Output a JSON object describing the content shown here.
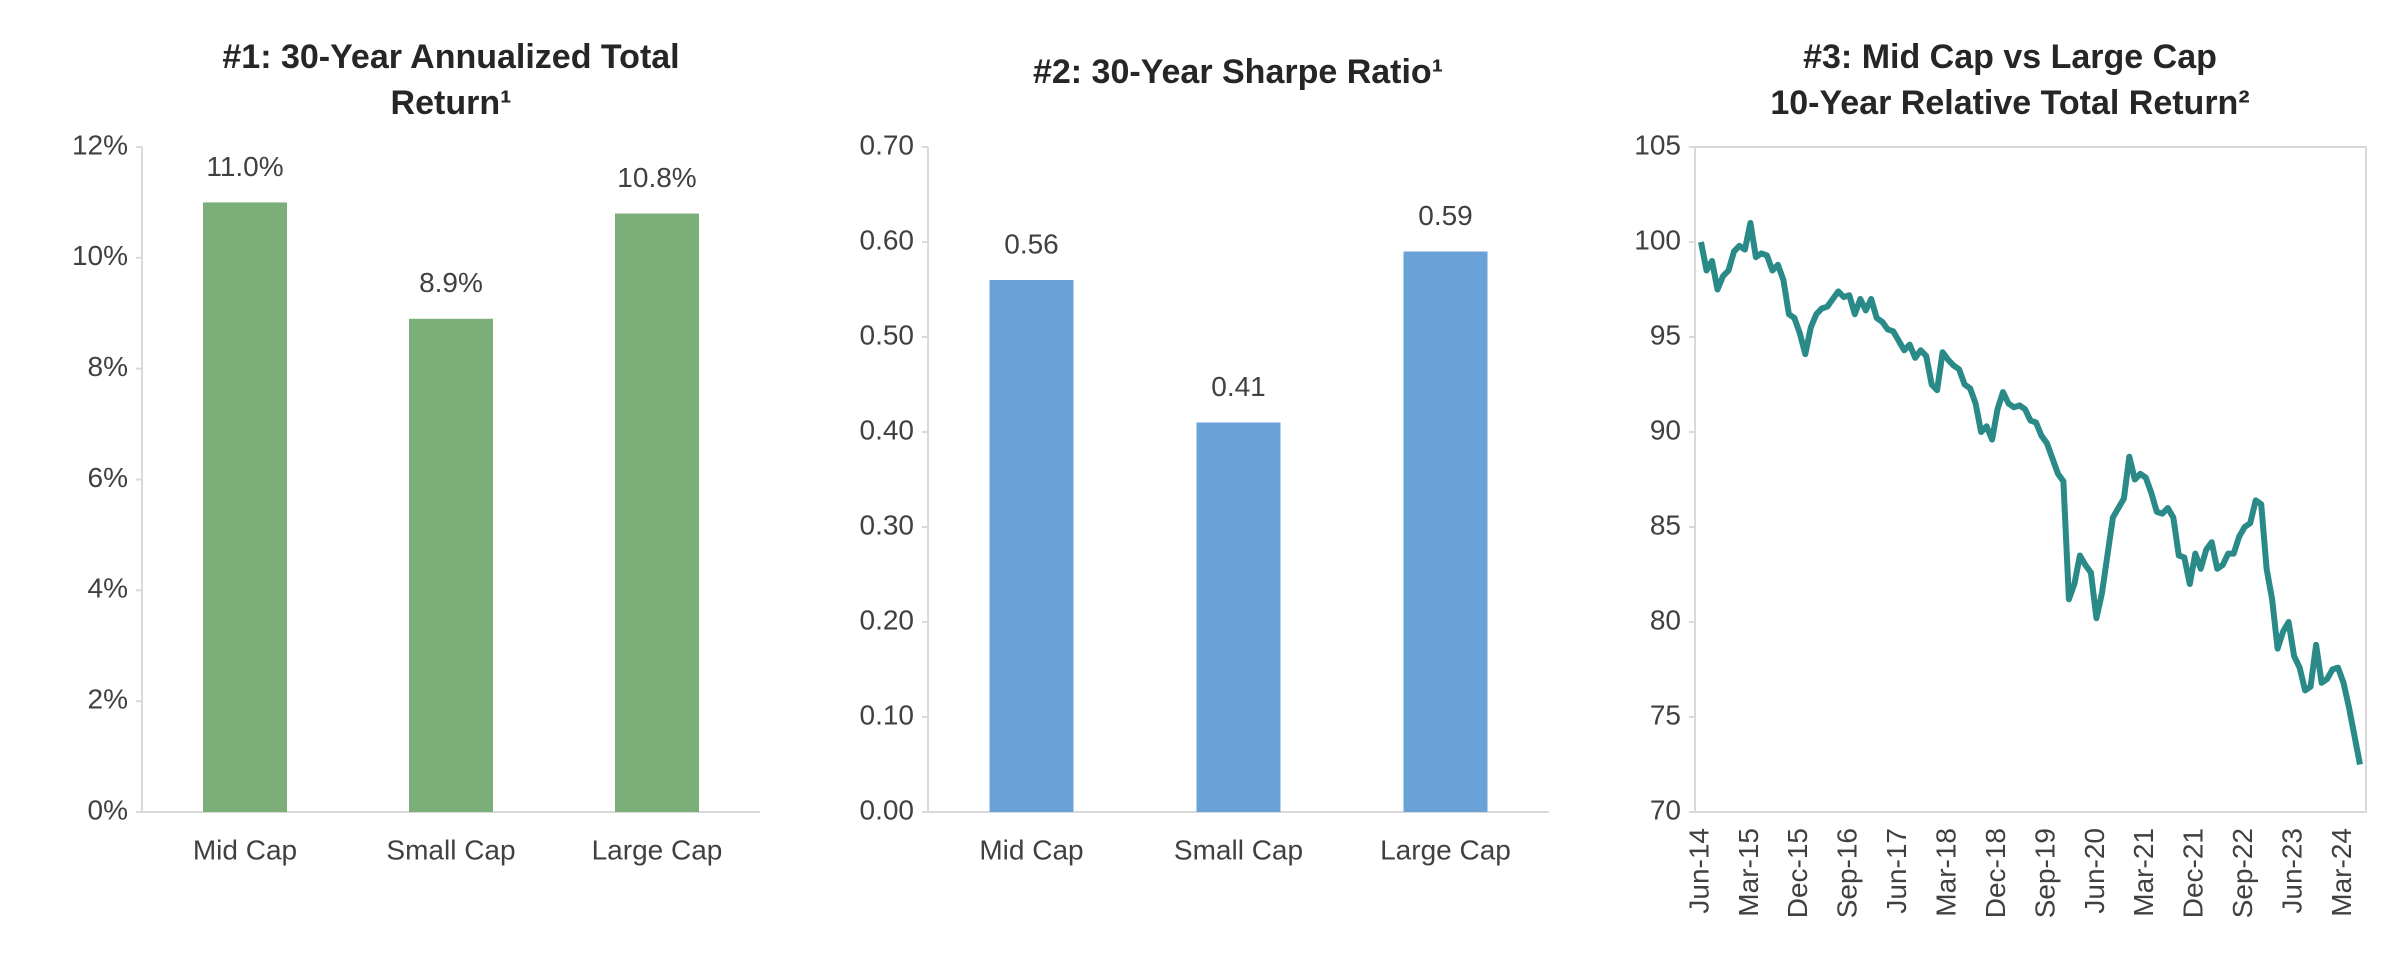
{
  "chart_data": [
    {
      "type": "bar",
      "title": [
        "#1: 30-Year Annualized Total",
        "Return¹"
      ],
      "categories": [
        "Mid Cap",
        "Small Cap",
        "Large Cap"
      ],
      "values": [
        11.0,
        8.9,
        10.8
      ],
      "value_labels": [
        "11.0%",
        "8.9%",
        "10.8%"
      ],
      "color": "#7bae78",
      "ylim": [
        0,
        12
      ],
      "yticks": [
        {
          "value": 0,
          "label": "0%"
        },
        {
          "value": 2,
          "label": "2%"
        },
        {
          "value": 4,
          "label": "4%"
        },
        {
          "value": 6,
          "label": "6%"
        },
        {
          "value": 8,
          "label": "8%"
        },
        {
          "value": 10,
          "label": "10%"
        },
        {
          "value": 12,
          "label": "12%"
        }
      ]
    },
    {
      "type": "bar",
      "title": [
        "#2: 30-Year Sharpe Ratio¹"
      ],
      "categories": [
        "Mid Cap",
        "Small Cap",
        "Large Cap"
      ],
      "values": [
        0.56,
        0.41,
        0.59
      ],
      "color": "#6aa2d8",
      "ylim": [
        0,
        0.7
      ],
      "yticks": [
        {
          "value": 0,
          "label": "0.00"
        },
        {
          "value": 0.1,
          "label": "0.10"
        },
        {
          "value": 0.2,
          "label": "0.20"
        },
        {
          "value": 0.3,
          "label": "0.30"
        },
        {
          "value": 0.4,
          "label": "0.40"
        },
        {
          "value": 0.5,
          "label": "0.50"
        },
        {
          "value": 0.6,
          "label": "0.60"
        },
        {
          "value": 0.7,
          "label": "0.70"
        }
      ]
    },
    {
      "type": "line",
      "title": [
        "#3: Mid Cap vs Large Cap",
        "10-Year Relative Total Return²"
      ],
      "categories": [
        "Jun-14",
        null,
        null,
        null,
        null,
        null,
        null,
        null,
        null,
        "Mar-15",
        null,
        null,
        null,
        null,
        null,
        null,
        null,
        null,
        "Dec-15",
        null,
        null,
        null,
        null,
        null,
        null,
        null,
        null,
        "Sep-16",
        null,
        null,
        null,
        null,
        null,
        null,
        null,
        null,
        "Jun-17",
        null,
        null,
        null,
        null,
        null,
        null,
        null,
        null,
        "Mar-18",
        null,
        null,
        null,
        null,
        null,
        null,
        null,
        null,
        "Dec-18",
        null,
        null,
        null,
        null,
        null,
        null,
        null,
        null,
        "Sep-19",
        null,
        null,
        null,
        null,
        null,
        null,
        null,
        null,
        "Jun-20",
        null,
        null,
        null,
        null,
        null,
        null,
        null,
        null,
        "Mar-21",
        null,
        null,
        null,
        null,
        null,
        null,
        null,
        null,
        "Dec-21",
        null,
        null,
        null,
        null,
        null,
        null,
        null,
        null,
        "Sep-22",
        null,
        null,
        null,
        null,
        null,
        null,
        null,
        null,
        "Jun-23",
        null,
        null,
        null,
        null,
        null,
        null,
        null,
        null,
        "Mar-24",
        null,
        null,
        null
      ],
      "values": [
        100,
        98.5,
        99,
        97.5,
        98.2,
        98.5,
        99.5,
        99.8,
        99.6,
        101,
        99.2,
        99.4,
        99.3,
        98.5,
        98.8,
        98,
        96.2,
        96,
        95.2,
        94.1,
        95.5,
        96.2,
        96.5,
        96.6,
        97,
        97.4,
        97.1,
        97.2,
        96.2,
        97,
        96.4,
        97,
        96,
        95.8,
        95.4,
        95.3,
        94.8,
        94.3,
        94.6,
        93.9,
        94.3,
        94,
        92.5,
        92.2,
        94.2,
        93.8,
        93.5,
        93.3,
        92.5,
        92.3,
        91.5,
        90,
        90.3,
        89.6,
        91.2,
        92.1,
        91.5,
        91.3,
        91.4,
        91.2,
        90.6,
        90.5,
        89.8,
        89.4,
        88.6,
        87.8,
        87.4,
        81.2,
        82,
        83.5,
        83,
        82.6,
        80.2,
        81.5,
        83.5,
        85.5,
        86,
        86.5,
        88.7,
        87.5,
        87.8,
        87.6,
        86.8,
        85.8,
        85.7,
        86,
        85.5,
        83.5,
        83.4,
        82,
        83.6,
        82.8,
        83.8,
        84.2,
        82.8,
        83,
        83.6,
        83.6,
        84.5,
        85,
        85.2,
        86.4,
        86.2,
        82.8,
        81.2,
        78.6,
        79.5,
        80,
        78.2,
        77.6,
        76.4,
        76.6,
        78.8,
        76.8,
        77,
        77.5,
        77.6,
        76.8,
        75.5,
        74,
        72.5
      ],
      "color": "#2a8a88",
      "ylim": [
        70,
        105
      ],
      "yticks": [
        70,
        75,
        80,
        85,
        90,
        95,
        100,
        105
      ]
    }
  ]
}
